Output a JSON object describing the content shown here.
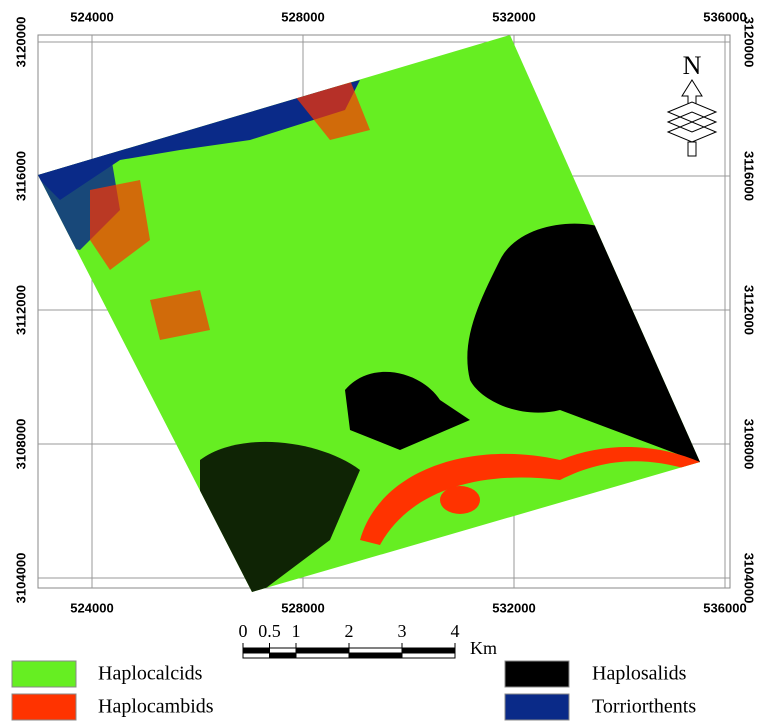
{
  "map": {
    "x_ticks": [
      524000,
      528000,
      532000,
      536000
    ],
    "y_ticks": [
      3120000,
      3116000,
      3112000,
      3108000,
      3104000
    ],
    "north": "N",
    "scale_bar": {
      "labels": [
        0,
        0.5,
        1,
        2,
        3,
        4
      ],
      "unit": "Km"
    },
    "legend": [
      {
        "label": "Haplocalcids",
        "color": "#66ee22"
      },
      {
        "label": "Haplocambids",
        "color": "#ff3300"
      },
      {
        "label": "Haplosalids",
        "color": "#000000"
      },
      {
        "label": "Torriorthents",
        "color": "#0a2a88"
      }
    ]
  }
}
